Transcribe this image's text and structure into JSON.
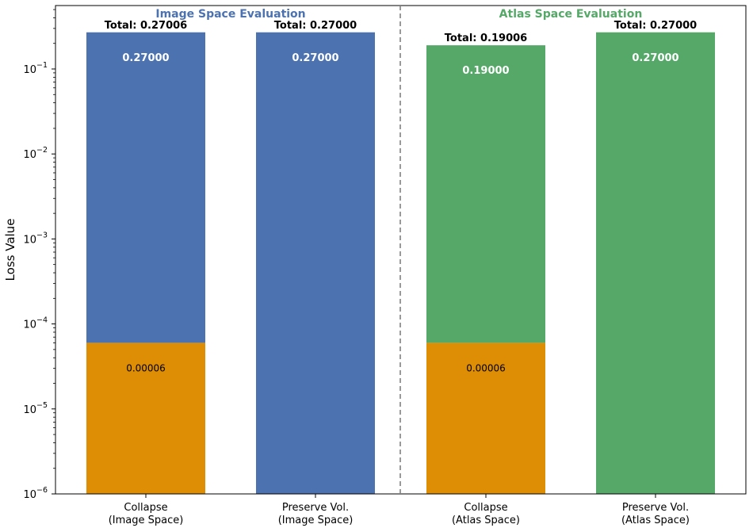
{
  "chart_data": {
    "type": "bar",
    "stacked": true,
    "yscale": "log",
    "ylabel": "Loss Value",
    "ylim": [
      1e-06,
      0.6
    ],
    "yticks": [
      {
        "value": 1e-06,
        "base": "10",
        "exp": "−6"
      },
      {
        "value": 1e-05,
        "base": "10",
        "exp": "−5"
      },
      {
        "value": 0.0001,
        "base": "10",
        "exp": "−4"
      },
      {
        "value": 0.001,
        "base": "10",
        "exp": "−3"
      },
      {
        "value": 0.01,
        "base": "10",
        "exp": "−2"
      },
      {
        "value": 0.1,
        "base": "10",
        "exp": "−1"
      }
    ],
    "categories": [
      [
        "Collapse",
        "(Image Space)"
      ],
      [
        "Preserve Vol.",
        "(Image Space)"
      ],
      [
        "Collapse",
        "(Atlas Space)"
      ],
      [
        "Preserve Vol.",
        "(Atlas Space)"
      ]
    ],
    "bars": [
      {
        "lower": 6e-05,
        "lower_label": "0.00006",
        "upper": 0.27,
        "upper_label": "0.27000",
        "upper_color": "#4c72b0",
        "total_label": "Total: 0.27006"
      },
      {
        "lower": 0,
        "lower_label": "",
        "upper": 0.27,
        "upper_label": "0.27000",
        "upper_color": "#4c72b0",
        "total_label": "Total: 0.27000"
      },
      {
        "lower": 6e-05,
        "lower_label": "0.00006",
        "upper": 0.19,
        "upper_label": "0.19000",
        "upper_color": "#55a868",
        "total_label": "Total: 0.19006"
      },
      {
        "lower": 0,
        "lower_label": "",
        "upper": 0.27,
        "upper_label": "0.27000",
        "upper_color": "#55a868",
        "total_label": "Total: 0.27000"
      }
    ],
    "lower_color": "#dd8e05",
    "groups": [
      {
        "title": "Image Space Evaluation",
        "color": "#4c72b0"
      },
      {
        "title": "Atlas Space Evaluation",
        "color": "#55a868"
      }
    ],
    "divider": "dashed"
  }
}
